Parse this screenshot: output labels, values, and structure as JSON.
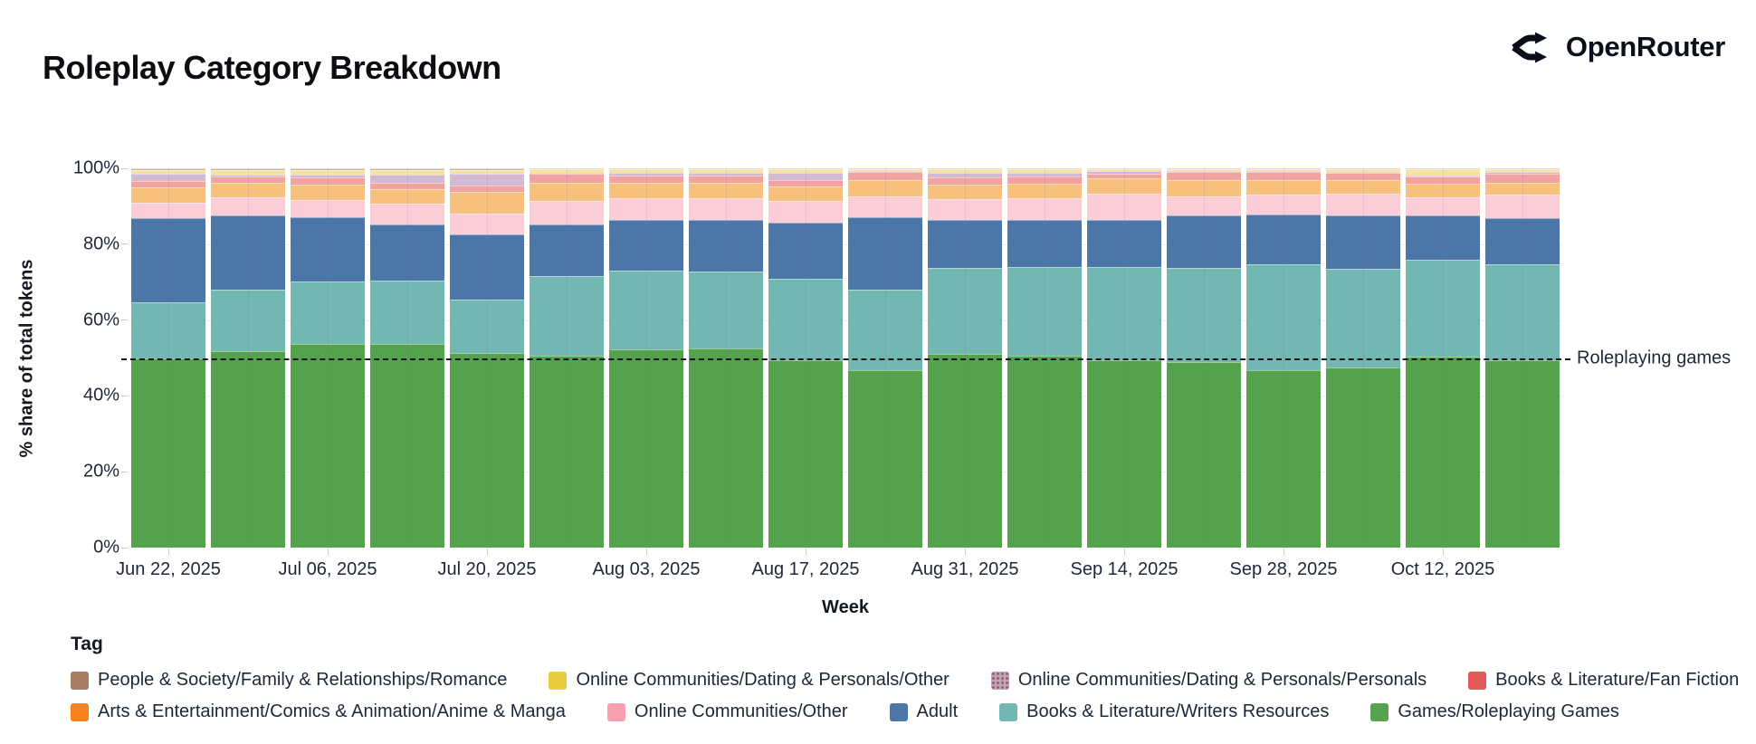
{
  "header": {
    "title": "Roleplay Category Breakdown",
    "brand": "OpenRouter"
  },
  "chart": {
    "y_axis_title": "% share of total tokens",
    "x_axis_title": "Week",
    "y_tick_suffix": "%"
  },
  "legend": {
    "title": "Tag",
    "rows": [
      [
        {
          "label": "People & Society/Family & Relationships/Romance",
          "color": "#a87c63"
        },
        {
          "label": "Online Communities/Dating & Personals/Other",
          "color": "#e7cd3d"
        },
        {
          "label": "Online Communities/Dating & Personals/Personals",
          "color": "#b9a6b5",
          "pattern": "dots"
        },
        {
          "label": "Books & Literature/Fan Fiction",
          "color": "#e25c5c"
        }
      ],
      [
        {
          "label": "Arts & Entertainment/Comics & Animation/Anime & Manga",
          "color": "#f5831f"
        },
        {
          "label": "Online Communities/Other",
          "color": "#f99fae"
        },
        {
          "label": "Adult",
          "color": "#4d76a8"
        },
        {
          "label": "Books & Literature/Writers Resources",
          "color": "#73b7b2"
        },
        {
          "label": "Games/Roleplaying Games",
          "color": "#57a34f"
        }
      ]
    ]
  },
  "chart_data": {
    "type": "bar",
    "subtype": "100pct-stacked-weekly",
    "title": "Roleplay Category Breakdown",
    "xlabel": "Week",
    "ylabel": "% share of total tokens",
    "ylim": [
      0,
      100
    ],
    "grid": "horizontal-light",
    "legend_position": "bottom",
    "y_ticks": [
      0,
      20,
      40,
      60,
      80,
      100
    ],
    "categories": [
      "Jun 22, 2025",
      "Jun 29, 2025",
      "Jul 06, 2025",
      "Jul 13, 2025",
      "Jul 20, 2025",
      "Jul 27, 2025",
      "Aug 03, 2025",
      "Aug 10, 2025",
      "Aug 17, 2025",
      "Aug 24, 2025",
      "Aug 31, 2025",
      "Sep 07, 2025",
      "Sep 14, 2025",
      "Sep 21, 2025",
      "Sep 28, 2025",
      "Oct 05, 2025",
      "Oct 12, 2025",
      "Oct 19, 2025"
    ],
    "x_tick_labels": [
      "Jun 22, 2025",
      "Jul 06, 2025",
      "Jul 20, 2025",
      "Aug 03, 2025",
      "Aug 17, 2025",
      "Aug 31, 2025",
      "Sep 14, 2025",
      "Sep 28, 2025",
      "Oct 12, 2025"
    ],
    "series": [
      {
        "name": "Games/Roleplaying Games",
        "color": "#55a24d",
        "values": [
          50.0,
          51.7,
          53.8,
          53.6,
          51.4,
          50.6,
          52.2,
          52.6,
          49.3,
          46.8,
          51.0,
          50.7,
          49.5,
          49.0,
          46.8,
          47.4,
          50.4,
          49.3
        ]
      },
      {
        "name": "Books & Literature/Writers Resources",
        "color": "#73b7b2",
        "values": [
          14.8,
          16.3,
          16.3,
          16.9,
          13.9,
          20.9,
          20.9,
          20.1,
          21.7,
          21.2,
          22.7,
          23.4,
          24.4,
          24.7,
          28.0,
          26.1,
          25.6,
          25.5
        ]
      },
      {
        "name": "Adult",
        "color": "#4d76a8",
        "values": [
          22.1,
          19.7,
          17.1,
          14.8,
          17.2,
          13.6,
          13.2,
          13.6,
          14.8,
          19.1,
          12.8,
          12.4,
          12.6,
          14.0,
          13.1,
          14.2,
          11.7,
          12.0
        ]
      },
      {
        "name": "Online Communities/Other",
        "color": "#fbcdd7",
        "values": [
          4.0,
          4.6,
          4.5,
          5.5,
          5.6,
          6.4,
          5.9,
          5.9,
          5.7,
          5.5,
          5.5,
          5.7,
          6.9,
          5.0,
          5.3,
          5.7,
          4.6,
          6.2
        ]
      },
      {
        "name": "Arts & Entertainment/Comics & Animation/Anime & Manga",
        "color": "#f8c07d",
        "values": [
          4.2,
          3.9,
          4.0,
          3.8,
          5.8,
          4.6,
          3.9,
          3.9,
          3.8,
          4.2,
          3.8,
          3.8,
          4.1,
          4.3,
          3.8,
          3.6,
          3.6,
          3.3
        ]
      },
      {
        "name": "Books & Literature/Fan Fiction",
        "color": "#f1a3a2",
        "values": [
          1.6,
          1.6,
          1.9,
          1.7,
          1.6,
          2.4,
          1.9,
          1.9,
          1.7,
          2.2,
          1.9,
          1.9,
          1.2,
          2.0,
          2.0,
          1.9,
          1.9,
          2.4
        ]
      },
      {
        "name": "Online Communities/Dating & Personals/Personals",
        "color": "#d3bad4",
        "values": [
          1.8,
          0.6,
          0.7,
          2.0,
          3.0,
          0.2,
          0.9,
          0.9,
          1.9,
          0.2,
          1.0,
          1.0,
          0.6,
          0.3,
          0.2,
          0.2,
          0.4,
          0.4
        ]
      },
      {
        "name": "Online Communities/Dating & Personals/Other",
        "color": "#f4e3a1",
        "values": [
          1.0,
          1.2,
          1.3,
          1.2,
          1.0,
          1.0,
          0.8,
          0.8,
          0.8,
          0.5,
          1.0,
          0.8,
          0.4,
          0.4,
          0.5,
          0.6,
          1.5,
          0.6
        ]
      },
      {
        "name": "People & Society/Family & Relationships/Romance",
        "color": "#cab4a5",
        "values": [
          0.5,
          0.4,
          0.4,
          0.5,
          0.5,
          0.3,
          0.3,
          0.3,
          0.3,
          0.3,
          0.3,
          0.3,
          0.3,
          0.3,
          0.3,
          0.3,
          0.3,
          0.3
        ]
      }
    ],
    "reference_line": {
      "y": 50,
      "label": "Roleplaying games",
      "style": "dashed",
      "color": "#14171d"
    }
  }
}
